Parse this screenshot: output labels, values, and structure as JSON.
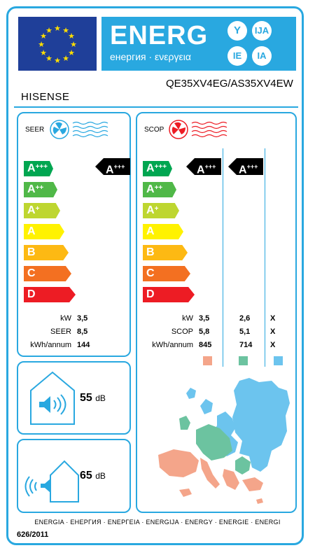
{
  "header": {
    "energy_word": "ENERG",
    "energy_sub": "енергия · ενεργεια",
    "bubbles": [
      "Y",
      "IJA",
      "IE",
      "IA"
    ],
    "supplier": "HISENSE",
    "model": "QE35XV4EG/AS35XV4EW"
  },
  "colors": {
    "frame": "#29a8e0",
    "eu_blue": "#1f3f99",
    "star": "#ffde00",
    "class_colors": [
      "#00a651",
      "#50b848",
      "#bed630",
      "#fff200",
      "#fdb913",
      "#f37021",
      "#ed1c24"
    ],
    "zone_warmer": "#f4a58a",
    "zone_average": "#6cc3a0",
    "zone_colder": "#6cc4ee"
  },
  "classes": [
    {
      "letter": "A",
      "plus": "+++"
    },
    {
      "letter": "A",
      "plus": "++"
    },
    {
      "letter": "A",
      "plus": "+"
    },
    {
      "letter": "A",
      "plus": ""
    },
    {
      "letter": "B",
      "plus": ""
    },
    {
      "letter": "C",
      "plus": ""
    },
    {
      "letter": "D",
      "plus": ""
    }
  ],
  "cooling": {
    "title": "SEER",
    "class": {
      "letter": "A",
      "plus": "+++"
    },
    "rows": [
      {
        "label": "kW",
        "value": "3,5"
      },
      {
        "label": "SEER",
        "value": "8,5"
      },
      {
        "label": "kWh/annum",
        "value": "144"
      }
    ]
  },
  "heating": {
    "title": "SCOP",
    "class_average": {
      "letter": "A",
      "plus": "+++"
    },
    "class_warmer": {
      "letter": "A",
      "plus": "+++"
    },
    "rows": [
      {
        "label": "kW",
        "average": "3,5",
        "warmer": "2,6",
        "colder": "X"
      },
      {
        "label": "SCOP",
        "average": "5,8",
        "warmer": "5,1",
        "colder": "X"
      },
      {
        "label": "kWh/annum",
        "average": "845",
        "warmer": "714",
        "colder": "X"
      }
    ]
  },
  "noise": {
    "indoor": {
      "value": "55",
      "unit": "dB"
    },
    "outdoor": {
      "value": "65",
      "unit": "dB"
    }
  },
  "footer": {
    "languages": "ENERGIA · ЕНЕРГИЯ · ΕΝΕΡΓΕΙΑ · ENERGIJA · ENERGY · ENERGIE · ENERGI",
    "regulation": "626/2011"
  }
}
